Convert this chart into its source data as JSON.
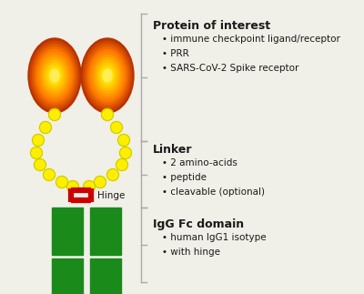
{
  "background_color": "#f0efe8",
  "protein_of_interest_title": "Protein of interest",
  "protein_bullets": [
    "immune checkpoint ligand/receptor",
    "PRR",
    "SARS-CoV-2 Spike receptor"
  ],
  "linker_title": "Linker",
  "linker_bullets": [
    "2 amino-acids",
    "peptide",
    "cleavable (optional)"
  ],
  "igg_title": "IgG Fc domain",
  "igg_bullets": [
    "human IgG1 isotype",
    "with hinge"
  ],
  "hinge_label": "Hinge",
  "bead_color": "#ffee00",
  "bead_edge_color": "#cccc00",
  "hinge_color": "#cc0000",
  "fc_color": "#1a8a1a",
  "bracket_color": "#aaaaaa",
  "text_color": "#1a1a1a",
  "title_fontsize": 9,
  "bullet_fontsize": 7.5,
  "hinge_fontsize": 7.5,
  "ellipse_gradient": [
    "#b83200",
    "#cc4400",
    "#dd5500",
    "#ee6600",
    "#ff7700",
    "#ff8800",
    "#ff9900",
    "#ffaa00",
    "#ffbb00",
    "#ffcc00",
    "#ffdd00",
    "#ffee55"
  ]
}
